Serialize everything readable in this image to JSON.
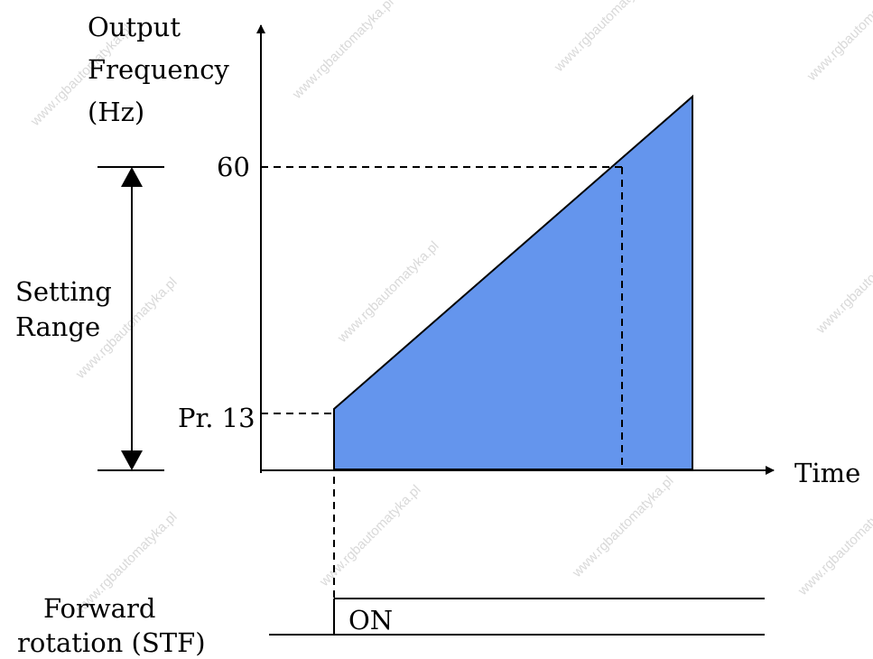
{
  "colors": {
    "fill": "#6495ed",
    "line": "#000000",
    "background": "#ffffff",
    "watermark": "#d9d9d9"
  },
  "watermark": "www.rgbautomatyka.pl",
  "y_axis_label": {
    "line1": "Output",
    "line2": "Frequency",
    "line3": "(Hz)"
  },
  "x_axis_label": "Time",
  "setting_range": {
    "line1": "Setting",
    "line2": "Range"
  },
  "frequency_marks": {
    "max_value": "60",
    "min_value": "Pr. 13"
  },
  "signal": {
    "label_line1": "Forward",
    "label_line2": "rotation (STF)",
    "state": "ON"
  }
}
